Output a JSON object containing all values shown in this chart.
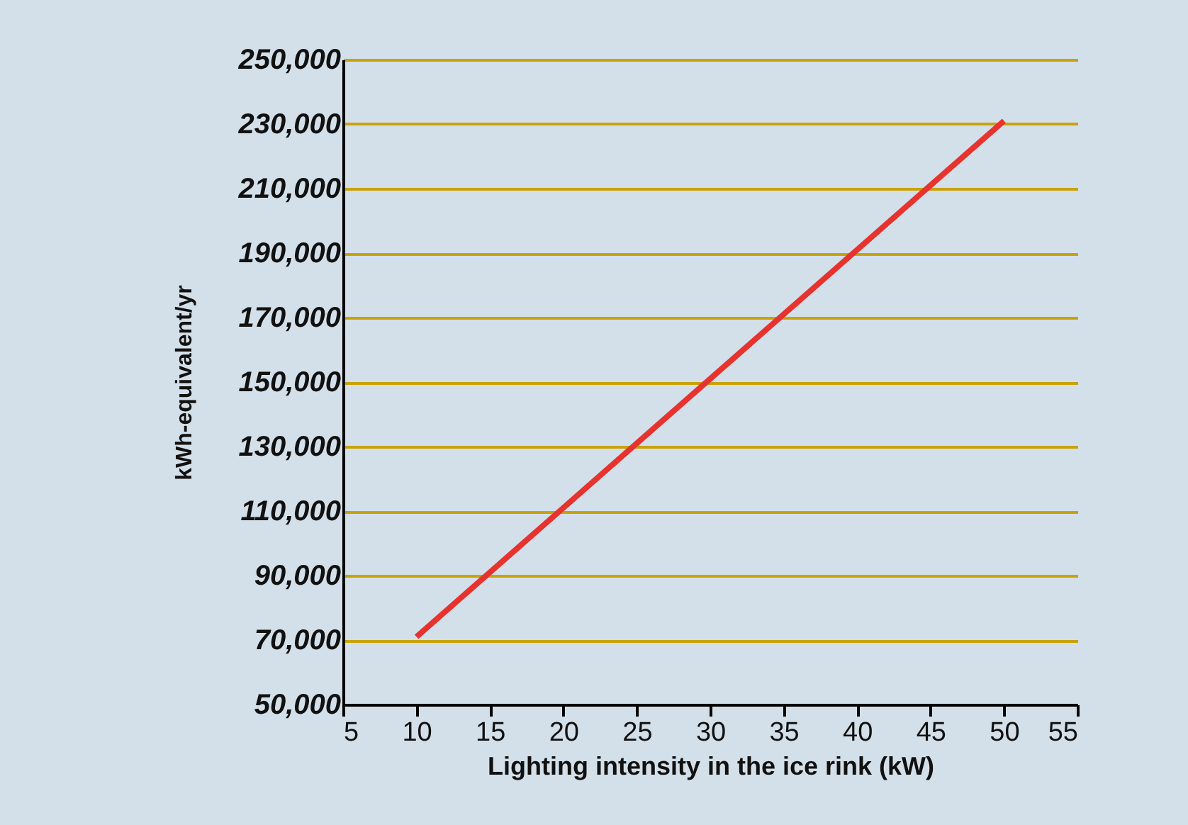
{
  "chart_data": {
    "type": "line",
    "xlabel": "Lighting intensity in the ice rink (kW)",
    "ylabel": "kWh-equivalent/yr",
    "x": [
      10,
      50
    ],
    "series": [
      {
        "color": "#e8322e",
        "values": [
          71000,
          231000
        ]
      }
    ],
    "xlim": [
      5,
      55
    ],
    "xticks": [
      5,
      10,
      15,
      20,
      25,
      30,
      35,
      40,
      45,
      50,
      55
    ],
    "ylim": [
      50000,
      250000
    ],
    "yticks": [
      {
        "value": 50000,
        "label": "50,000"
      },
      {
        "value": 70000,
        "label": "70,000"
      },
      {
        "value": 90000,
        "label": "90,000"
      },
      {
        "value": 110000,
        "label": "110,000"
      },
      {
        "value": 130000,
        "label": "130,000"
      },
      {
        "value": 150000,
        "label": "150,000"
      },
      {
        "value": 170000,
        "label": "170,000"
      },
      {
        "value": 190000,
        "label": "190,000"
      },
      {
        "value": 210000,
        "label": "210,000"
      },
      {
        "value": 230000,
        "label": "230,000"
      },
      {
        "value": 250000,
        "label": "250,000"
      }
    ],
    "grid": "y",
    "line_style": "solid",
    "marker": "none",
    "legend": false
  }
}
